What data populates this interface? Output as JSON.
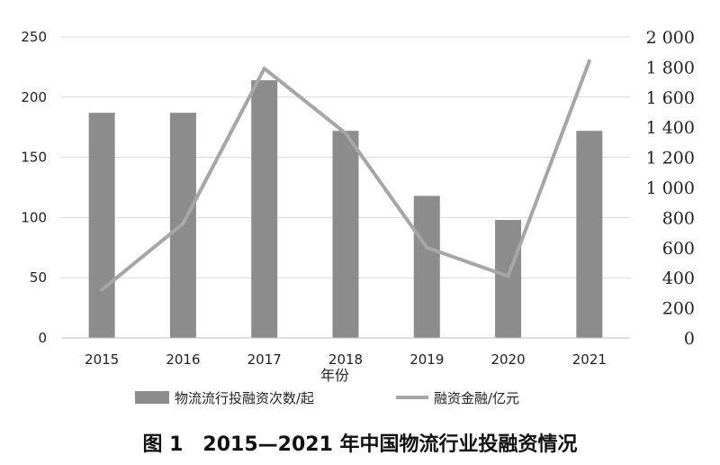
{
  "chart_data": {
    "type": "bar+line",
    "categories": [
      "2015",
      "2016",
      "2017",
      "2018",
      "2019",
      "2020",
      "2021"
    ],
    "xlabel": "年份",
    "y_left": {
      "min": 0,
      "max": 250,
      "ticks": [
        "0",
        "50",
        "100",
        "150",
        "200",
        "250"
      ]
    },
    "y_right": {
      "min": 0,
      "max": 2000,
      "ticks": [
        "0",
        "200",
        "400",
        "600",
        "800",
        "1 000",
        "1 200",
        "1 400",
        "1 600",
        "1 800",
        "2 000"
      ]
    },
    "series": [
      {
        "name": "物流流行投融资次数/起",
        "type": "bar",
        "axis": "left",
        "values": [
          187,
          187,
          214,
          172,
          118,
          98,
          172
        ],
        "color": "#8c8c8c"
      },
      {
        "name": "融资金融/亿元",
        "type": "line",
        "axis": "right",
        "values": [
          320,
          760,
          1790,
          1360,
          600,
          410,
          1840
        ],
        "color": "#a6a6a6"
      }
    ],
    "grid": true,
    "legend_position": "bottom"
  },
  "caption": "图 1　2015—2021 年中国物流行业投融资情况"
}
